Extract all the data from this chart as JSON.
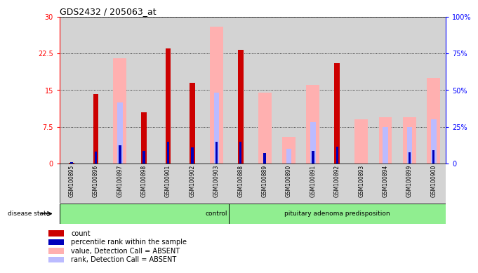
{
  "title": "GDS2432 / 205063_at",
  "samples": [
    "GSM100895",
    "GSM100896",
    "GSM100897",
    "GSM100898",
    "GSM100901",
    "GSM100902",
    "GSM100903",
    "GSM100888",
    "GSM100889",
    "GSM100890",
    "GSM100891",
    "GSM100892",
    "GSM100893",
    "GSM100894",
    "GSM100899",
    "GSM100900"
  ],
  "count": [
    0.2,
    14.2,
    0,
    10.5,
    23.5,
    16.5,
    0,
    23.2,
    0,
    0,
    0,
    20.5,
    0,
    0,
    0,
    0
  ],
  "percentile_rank": [
    1.0,
    8.3,
    12.5,
    8.5,
    14.8,
    11.0,
    14.8,
    14.8,
    7.0,
    0,
    8.5,
    11.5,
    0,
    0,
    7.5,
    9.0
  ],
  "value_absent": [
    0,
    0,
    21.5,
    0,
    0,
    0,
    28.0,
    0,
    14.5,
    5.5,
    16.0,
    0,
    9.0,
    9.5,
    9.5,
    17.5
  ],
  "rank_absent": [
    0,
    0,
    12.5,
    0,
    0,
    0,
    14.5,
    0,
    0,
    3.0,
    8.5,
    0,
    0,
    7.5,
    7.5,
    9.0
  ],
  "group_labels": [
    "control",
    "pituitary adenoma predisposition"
  ],
  "group_split": 7,
  "n_samples": 16,
  "ylim_left": [
    0,
    30
  ],
  "ylim_right": [
    0,
    100
  ],
  "yticks_left": [
    0,
    7.5,
    15,
    22.5,
    30
  ],
  "yticks_right": [
    0,
    25,
    50,
    75,
    100
  ],
  "ytick_labels_left": [
    "0",
    "7.5",
    "15",
    "22.5",
    "30"
  ],
  "ytick_labels_right": [
    "0",
    "25%",
    "50%",
    "75%",
    "100%"
  ],
  "color_count": "#CC0000",
  "color_percentile": "#0000BB",
  "color_value_absent": "#FFB0B0",
  "color_rank_absent": "#BBBBFF",
  "group_bg_color": "#90EE90",
  "sample_area_bg": "#D3D3D3",
  "legend_items": [
    "count",
    "percentile rank within the sample",
    "value, Detection Call = ABSENT",
    "rank, Detection Call = ABSENT"
  ],
  "disease_state_label": "disease state"
}
